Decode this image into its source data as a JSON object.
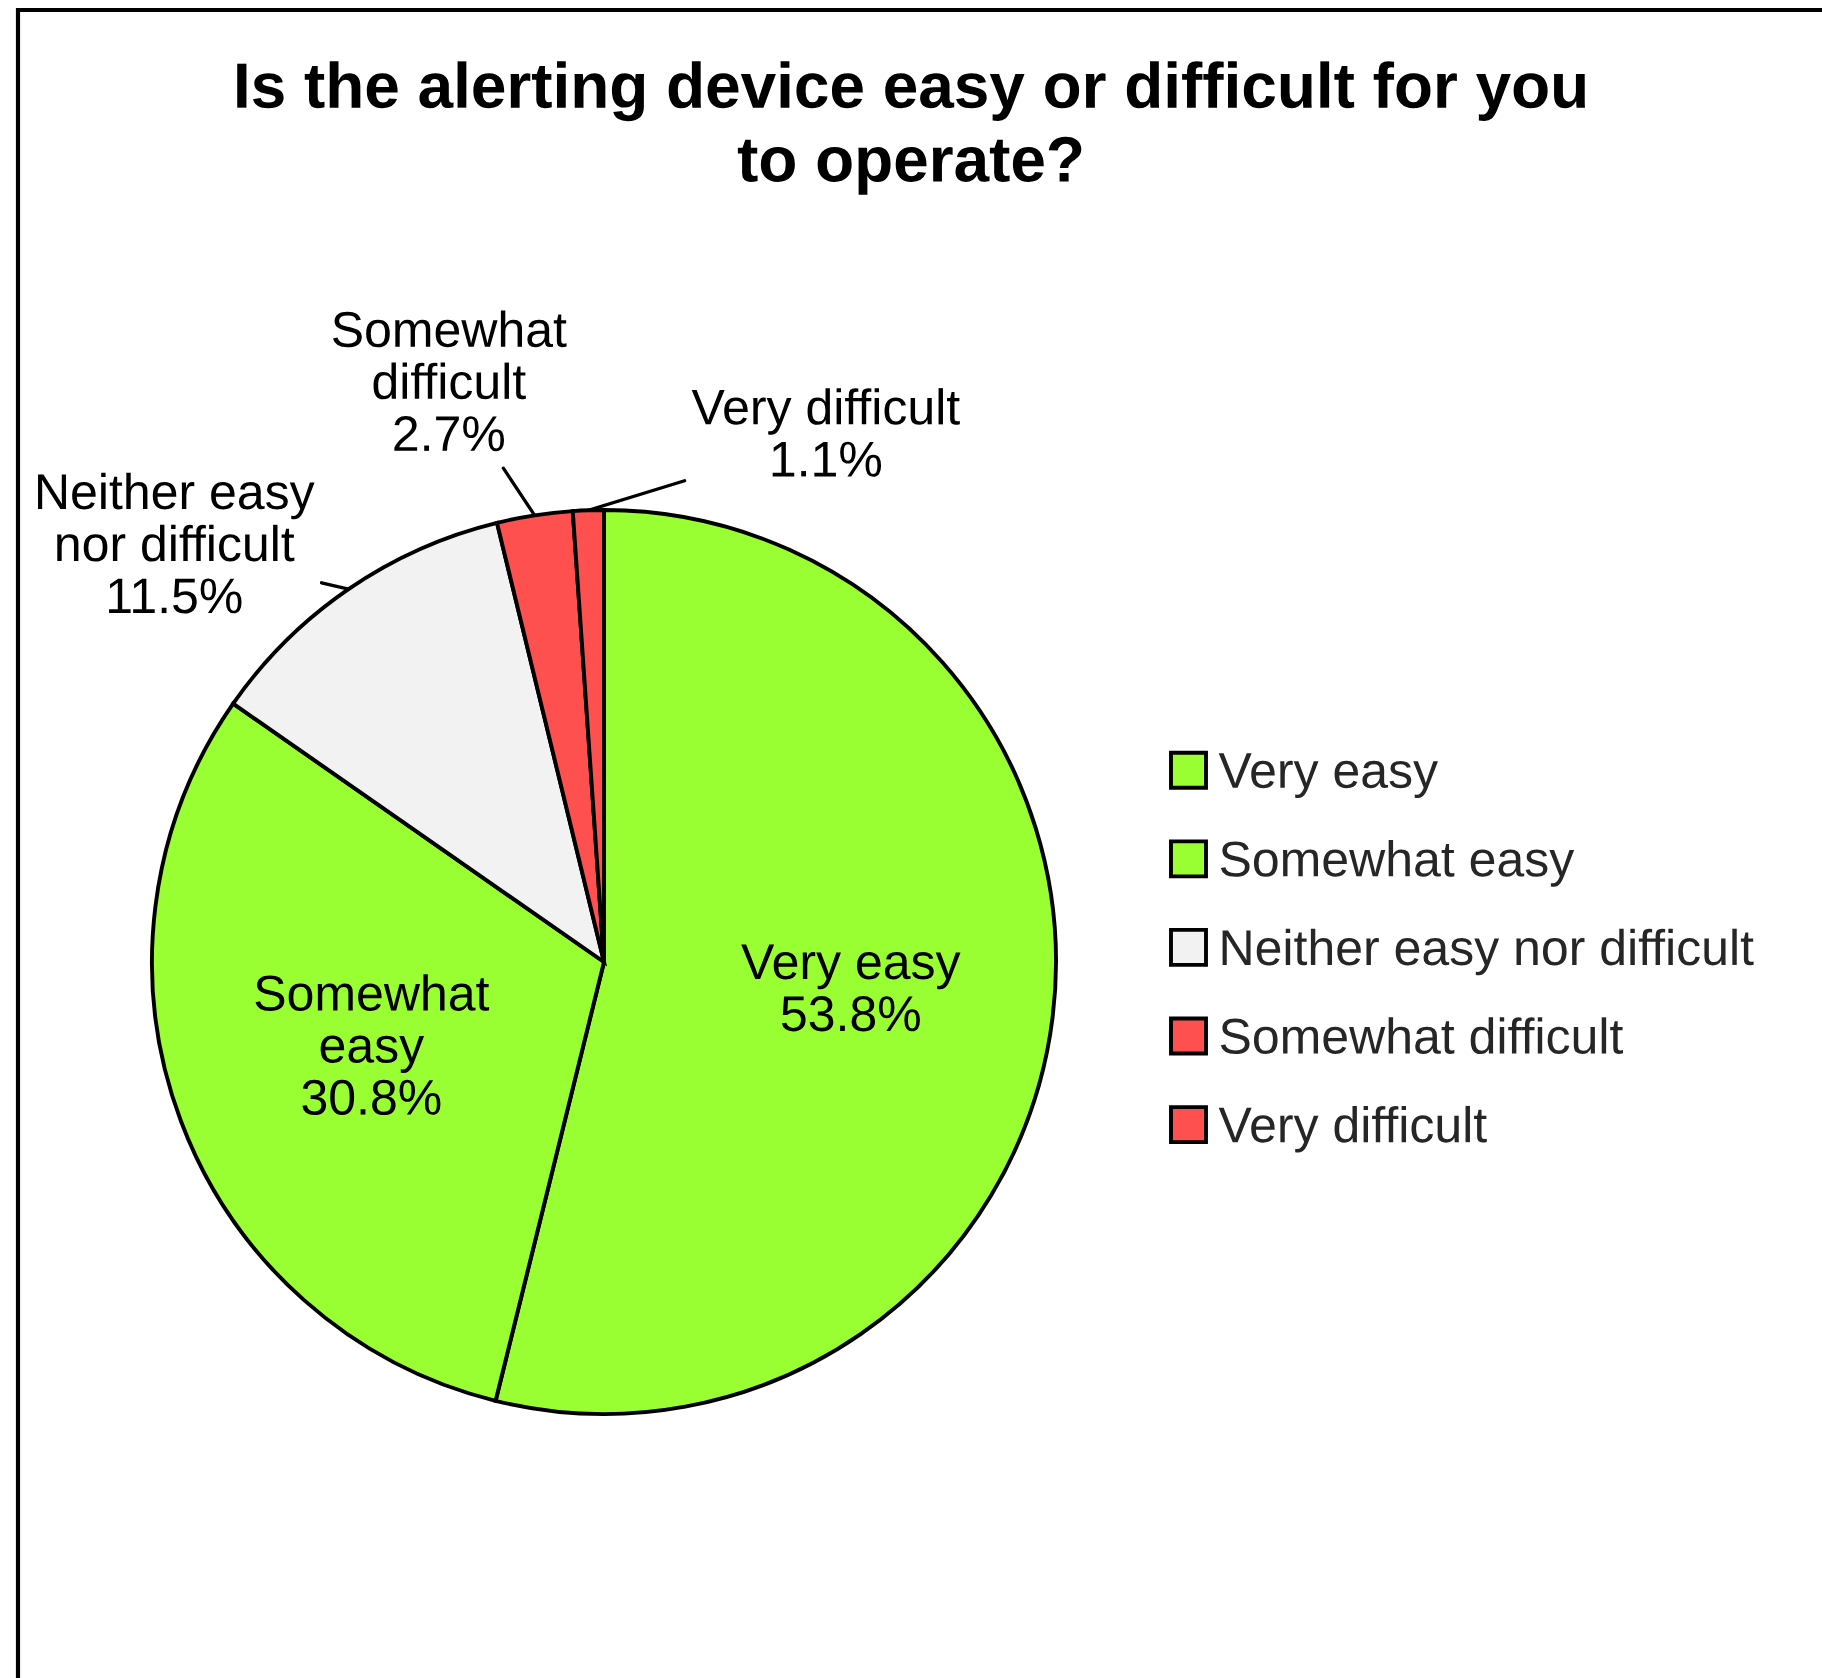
{
  "chart_data": {
    "type": "pie",
    "title": "Is the alerting device easy or difficult for you to operate?",
    "categories": [
      "Very easy",
      "Somewhat easy",
      "Neither easy nor difficult",
      "Somewhat difficult",
      "Very difficult"
    ],
    "values": [
      53.8,
      30.8,
      11.5,
      2.7,
      1.1
    ],
    "colors": [
      "#99ff33",
      "#99ff33",
      "#f2f2f2",
      "#ff5050",
      "#ff5050"
    ],
    "value_labels": [
      "53.8%",
      "30.8%",
      "11.5%",
      "2.7%",
      "1.1%"
    ],
    "legend": "right"
  }
}
